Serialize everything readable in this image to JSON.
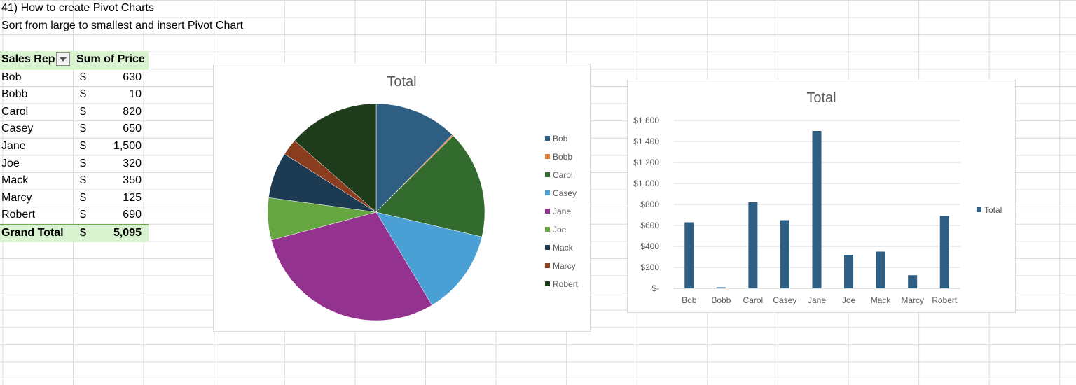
{
  "sheet": {
    "title": "41) How to create Pivot Charts",
    "subtitle": "Sort from large to smallest and insert Pivot Chart"
  },
  "pivot": {
    "header_rep": "Sales Rep",
    "header_sum": "Sum of Price",
    "currency": "$",
    "rows": [
      {
        "name": "Bob",
        "value": "630"
      },
      {
        "name": "Bobb",
        "value": "10"
      },
      {
        "name": "Carol",
        "value": "820"
      },
      {
        "name": "Casey",
        "value": "650"
      },
      {
        "name": "Jane",
        "value": "1,500"
      },
      {
        "name": "Joe",
        "value": "320"
      },
      {
        "name": "Mack",
        "value": "350"
      },
      {
        "name": "Marcy",
        "value": "125"
      },
      {
        "name": "Robert",
        "value": "690"
      }
    ],
    "total_label": "Grand Total",
    "total_value": "5,095"
  },
  "chart_data": [
    {
      "type": "pie",
      "title": "Total",
      "categories": [
        "Bob",
        "Bobb",
        "Carol",
        "Casey",
        "Jane",
        "Joe",
        "Mack",
        "Marcy",
        "Robert"
      ],
      "values": [
        630,
        10,
        820,
        650,
        1500,
        320,
        350,
        125,
        690
      ],
      "colors": [
        "#2e5f82",
        "#e07b39",
        "#336b2e",
        "#4a9fd4",
        "#93338f",
        "#66a640",
        "#1c3a52",
        "#8b3d1f",
        "#1e3b1c"
      ],
      "legend": "right"
    },
    {
      "type": "bar",
      "title": "Total",
      "categories": [
        "Bob",
        "Bobb",
        "Carol",
        "Casey",
        "Jane",
        "Joe",
        "Mack",
        "Marcy",
        "Robert"
      ],
      "series": [
        {
          "name": "Total",
          "values": [
            630,
            10,
            820,
            650,
            1500,
            320,
            350,
            125,
            690
          ]
        }
      ],
      "ylim": [
        0,
        1600
      ],
      "yticks": [
        "$-",
        "$200",
        "$400",
        "$600",
        "$800",
        "$1,000",
        "$1,200",
        "$1,400",
        "$1,600"
      ],
      "color": "#2e5f82",
      "grid": true,
      "legend": "right"
    }
  ]
}
